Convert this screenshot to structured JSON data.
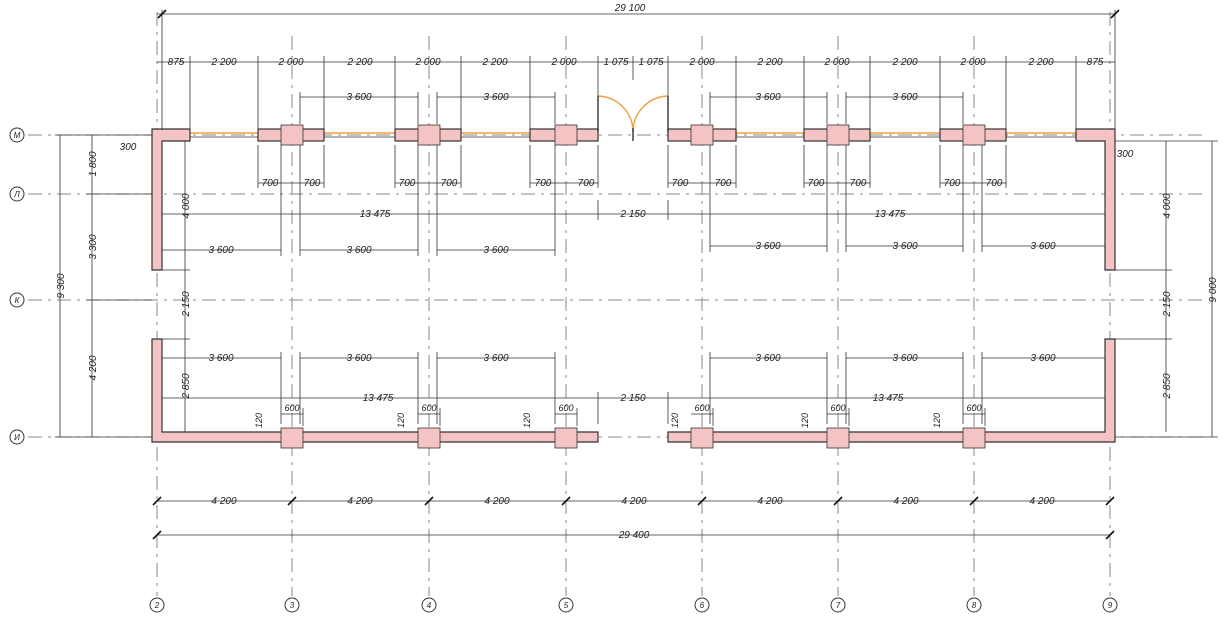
{
  "axes": {
    "vertical": [
      "2",
      "3",
      "4",
      "5",
      "6",
      "7",
      "8",
      "9"
    ],
    "horizontal": [
      "М",
      "Л",
      "К",
      "И"
    ]
  },
  "overall": {
    "top": "29 100",
    "bottom": "29 400",
    "left": "9 300",
    "right": "9 000"
  },
  "top_chain": [
    "875",
    "2 200",
    "2 000",
    "2 200",
    "2 000",
    "2 200",
    "2 000",
    "1 075",
    "1 075",
    "2 000",
    "2 200",
    "2 000",
    "2 200",
    "2 000",
    "2 200",
    "875"
  ],
  "column_spacing_top": [
    "3 600",
    "3 600",
    "3 600",
    "3 600"
  ],
  "pilaster_widths": [
    "700",
    "700",
    "700",
    "700",
    "700",
    "700",
    "700",
    "700",
    "700",
    "700",
    "700",
    "700"
  ],
  "long_dims": [
    "13 475",
    "2 150",
    "13 475",
    "13 475",
    "2 150",
    "13 475"
  ],
  "bays_upper": [
    "3 600",
    "3 600",
    "3 600",
    "3 600",
    "3 600",
    "3 600"
  ],
  "bays_lower": [
    "3 600",
    "3 600",
    "3 600",
    "3 600",
    "3 600",
    "3 600"
  ],
  "column_widths_bottom": [
    "600",
    "600",
    "600",
    "600",
    "600",
    "600"
  ],
  "offsets_bottom": [
    "120",
    "120",
    "120",
    "120",
    "120",
    "120"
  ],
  "left_chain": [
    "1 800",
    "3 300",
    "4 200"
  ],
  "left_wall": {
    "upper": "4 000",
    "gap": "2 150",
    "lower": "2 850",
    "thickness": "300"
  },
  "right_wall": {
    "upper": "4 000",
    "gap": "2 150",
    "lower": "2 850",
    "thickness": "300"
  },
  "bottom_chain": [
    "4 200",
    "4 200",
    "4 200",
    "4 200",
    "4 200",
    "4 200",
    "4 200"
  ],
  "colors": {
    "wall_fill": "#f4c4c4",
    "accent": "#f0a040"
  }
}
